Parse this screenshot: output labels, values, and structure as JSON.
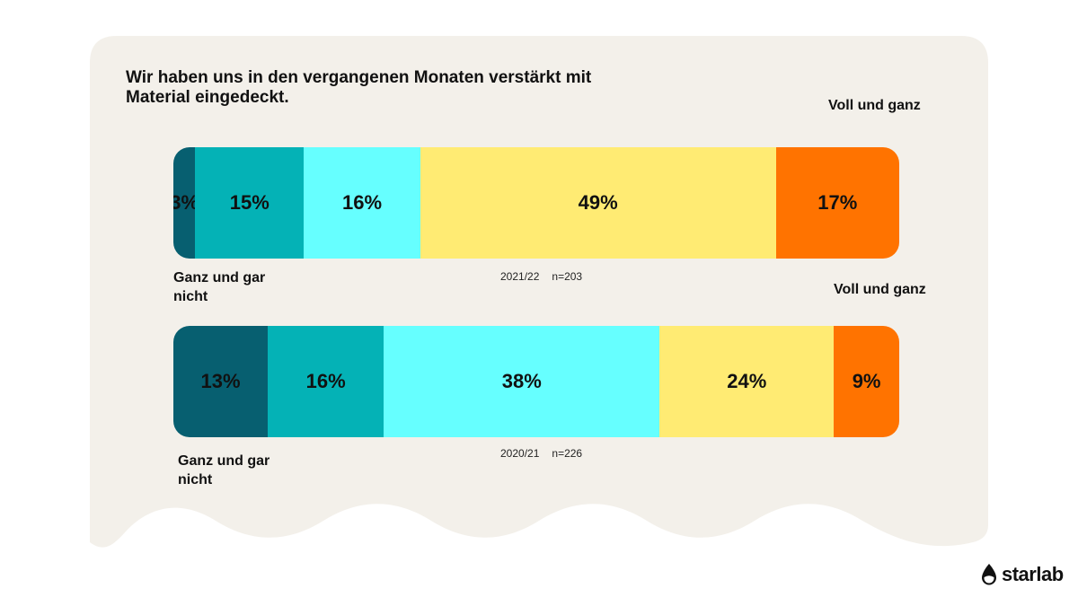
{
  "title": "Wir haben uns in den vergangenen Monaten verstärkt mit Material eingedeckt.",
  "brand": "starlab",
  "colors": [
    "#075f70",
    "#04b2b6",
    "#66ffff",
    "#ffeb73",
    "#ff7300"
  ],
  "chart_data": {
    "type": "bar",
    "orientation": "horizontal",
    "stacked": true,
    "normalized": true,
    "scale_labels": {
      "low": "Ganz und gar nicht",
      "high": "Voll und ganz"
    },
    "series": [
      {
        "period": "2021/22",
        "n": "n=203",
        "values": [
          3,
          15,
          16,
          49,
          17
        ],
        "labels": [
          "3%",
          "15%",
          "16%",
          "49%",
          "17%"
        ]
      },
      {
        "period": "2020/21",
        "n": "n=226",
        "values": [
          13,
          16,
          38,
          24,
          9
        ],
        "labels": [
          "13%",
          "16%",
          "38%",
          "24%",
          "9%"
        ]
      }
    ]
  }
}
